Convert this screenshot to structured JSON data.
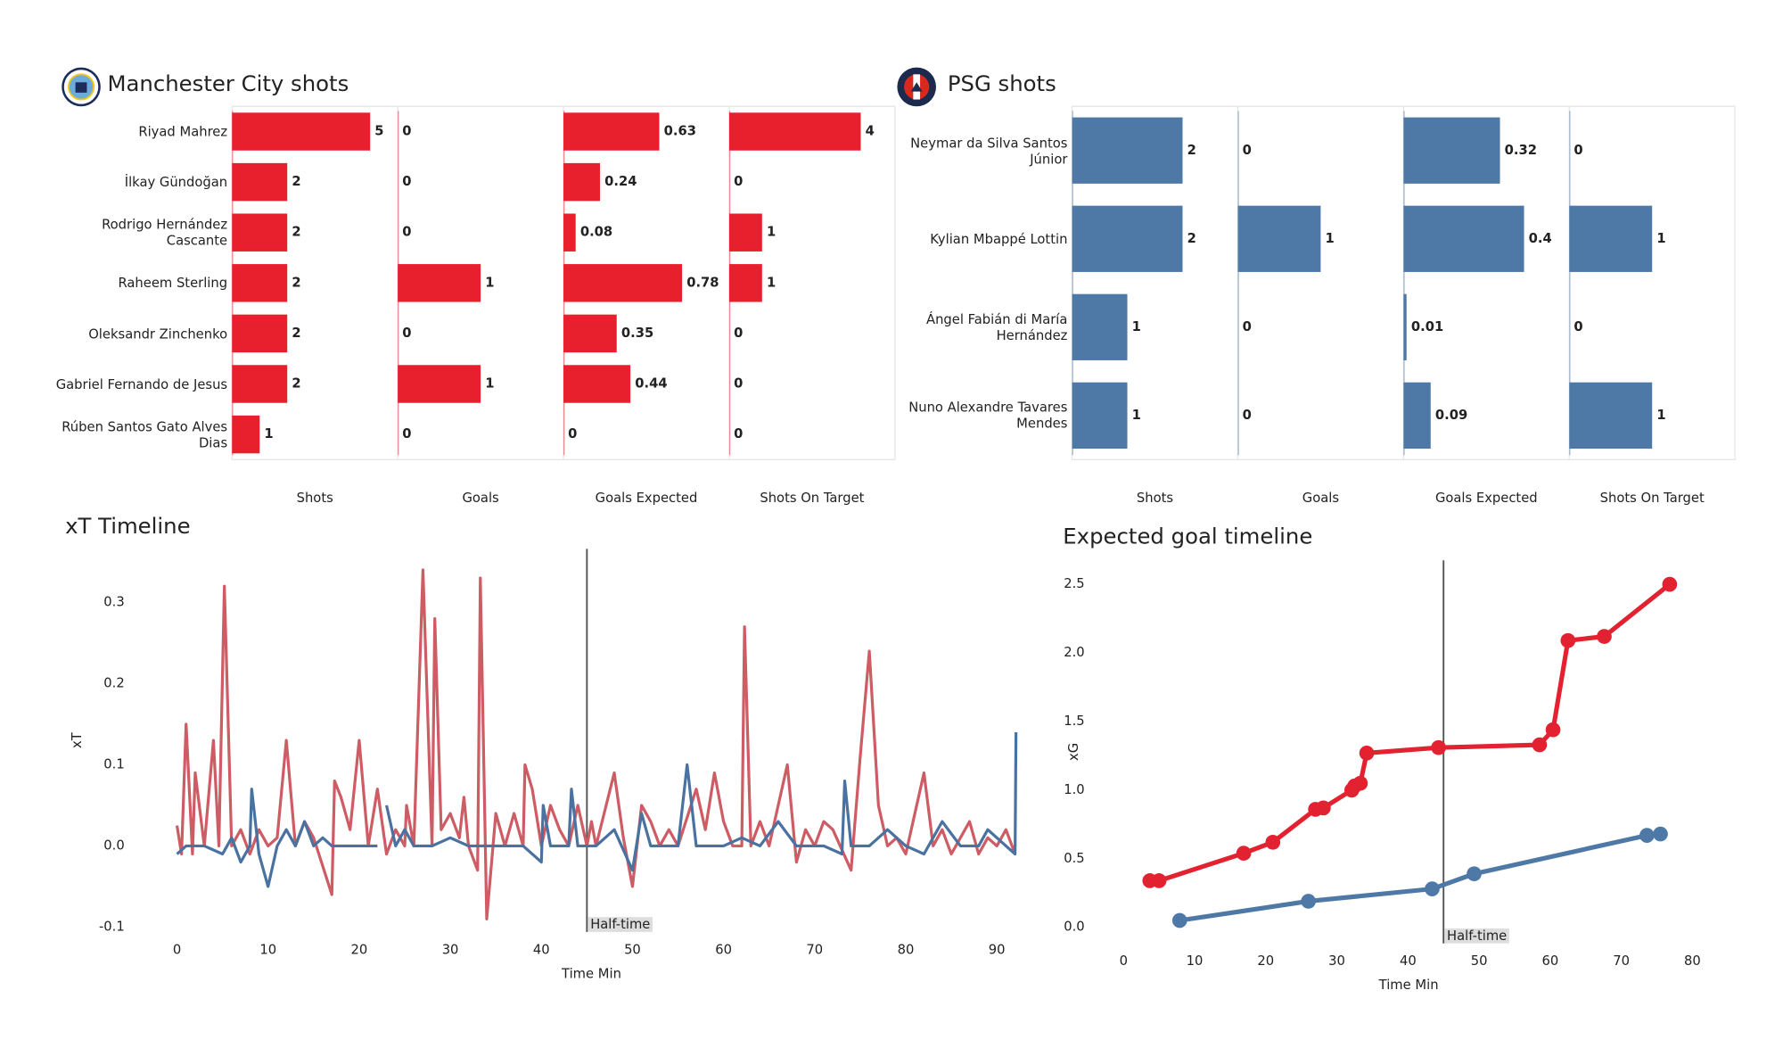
{
  "chart_data": [
    {
      "type": "bar",
      "title": "Manchester City shots",
      "categories": [
        "Riyad Mahrez",
        "İlkay Gündoğan",
        "Rodrigo Hernández Cascante",
        "Raheem Sterling",
        "Oleksandr Zinchenko",
        "Gabriel Fernando de Jesus",
        "Rúben  Santos Gato Alves Dias"
      ],
      "series": [
        {
          "name": "Shots",
          "color": "#e8202e",
          "values": [
            5,
            2,
            2,
            2,
            2,
            2,
            1
          ],
          "xlim": [
            0,
            6
          ]
        },
        {
          "name": "Goals",
          "color": "#e8202e",
          "values": [
            0,
            0,
            0,
            1,
            0,
            1,
            0
          ],
          "xlim": [
            0,
            2
          ]
        },
        {
          "name": "Goals Expected",
          "color": "#e8202e",
          "values": [
            0.63,
            0.24,
            0.08,
            0.78,
            0.35,
            0.44,
            0
          ],
          "xlim": [
            0,
            1.09
          ]
        },
        {
          "name": "Shots On Target",
          "color": "#e8202e",
          "values": [
            4,
            0,
            1,
            1,
            0,
            0,
            0
          ],
          "xlim": [
            0,
            5.04
          ]
        }
      ]
    },
    {
      "type": "bar",
      "title": "PSG shots",
      "categories": [
        "Neymar da Silva Santos Júnior",
        "Kylian Mbappé Lottin",
        "Ángel Fabián di María Hernández",
        "Nuno Alexandre Tavares Mendes"
      ],
      "series": [
        {
          "name": "Shots",
          "color": "#4e79a7",
          "values": [
            2,
            2,
            1,
            1
          ],
          "xlim": [
            0,
            3
          ]
        },
        {
          "name": "Goals",
          "color": "#4e79a7",
          "values": [
            0,
            1,
            0,
            0
          ],
          "xlim": [
            0,
            2
          ]
        },
        {
          "name": "Goals Expected",
          "color": "#4e79a7",
          "values": [
            0.32,
            0.4,
            0.01,
            0.09
          ],
          "xlim": [
            0,
            0.55
          ]
        },
        {
          "name": "Shots On Target",
          "color": "#4e79a7",
          "values": [
            0,
            1,
            0,
            1
          ],
          "xlim": [
            0,
            2
          ]
        }
      ]
    },
    {
      "type": "line",
      "title": "xT Timeline",
      "xlabel": "Time Min",
      "ylabel": "xT",
      "xlim": [
        -5,
        96
      ],
      "ylim": [
        -0.106,
        0.366
      ],
      "xticks": [
        0,
        10,
        20,
        30,
        40,
        50,
        60,
        70,
        80,
        90
      ],
      "yticks": [
        -0.1,
        {
          "value": 0,
          "label": "0.0"
        },
        0.1,
        0.2,
        0.3
      ],
      "annotation": {
        "value": 45,
        "label": "Half-time"
      },
      "series": [
        {
          "color": "#cd5c64",
          "x": [
            0,
            0.5,
            1,
            1.7,
            2,
            3,
            4,
            4.6,
            5.2,
            6,
            7,
            8,
            9,
            10,
            11,
            12,
            13,
            14,
            15,
            17,
            17.3,
            18,
            19,
            20,
            21,
            22,
            23,
            24,
            25,
            25.2,
            26,
            27,
            28,
            28.3,
            29,
            30,
            31,
            31.5,
            32,
            33,
            33.3,
            34,
            35,
            36,
            37,
            38,
            38.2,
            39,
            40,
            41,
            42,
            43,
            44,
            45,
            45.5,
            46,
            48,
            49,
            50,
            51,
            52,
            53,
            54,
            55,
            57,
            58,
            59,
            60,
            61,
            62,
            62.3,
            63,
            64,
            65,
            67,
            68,
            69,
            70,
            71,
            72,
            74,
            75,
            76,
            77,
            78,
            79,
            80,
            81,
            82,
            83,
            84,
            85,
            86,
            87,
            88,
            89,
            90,
            91,
            92
          ],
          "values": [
            0.025,
            -0.01,
            0.15,
            -0.01,
            0.09,
            0,
            0.13,
            0,
            0.32,
            0,
            0.02,
            -0.01,
            0.02,
            0,
            0.01,
            0.13,
            0,
            0.03,
            0.01,
            -0.06,
            0.08,
            0.06,
            0.02,
            0.13,
            0,
            0.07,
            -0.01,
            0.02,
            0,
            0.05,
            0,
            0.34,
            0,
            0.28,
            0.02,
            0.04,
            0.01,
            0.06,
            0,
            -0.03,
            0.33,
            -0.09,
            0.04,
            0,
            0.04,
            0,
            0.1,
            0.07,
            0,
            0.05,
            0.02,
            0,
            0.05,
            0,
            0.03,
            0,
            0.09,
            0.01,
            -0.05,
            0.05,
            0.03,
            0,
            0.02,
            0,
            0.07,
            0.02,
            0.09,
            0.03,
            0,
            0,
            0.27,
            0,
            0.03,
            0,
            0.1,
            -0.02,
            0.02,
            0,
            0.03,
            0.02,
            -0.03,
            0.11,
            0.24,
            0.05,
            0,
            0.01,
            -0.01,
            0.04,
            0.09,
            0,
            0.02,
            -0.01,
            0.01,
            0.03,
            -0.01,
            0.01,
            0,
            0.02,
            -0.01
          ]
        },
        {
          "color": "#4a72a0",
          "x": [
            0,
            1,
            3,
            5,
            6,
            7,
            8,
            8.2,
            9,
            10,
            11,
            12,
            13,
            14,
            15,
            16,
            17,
            20,
            22,
            22.5,
            23,
            24,
            25,
            26,
            28,
            30,
            32,
            35,
            38,
            40,
            40.2,
            41,
            43,
            43.3,
            44,
            46,
            48,
            50,
            51,
            52,
            55,
            56,
            57,
            60,
            62,
            64,
            66,
            68,
            71,
            73,
            73.3,
            74,
            76,
            78,
            80,
            82,
            84,
            86,
            88,
            89,
            92,
            92.1
          ],
          "values": [
            -0.01,
            0,
            0,
            -0.01,
            0.01,
            -0.02,
            0,
            0.07,
            -0.01,
            -0.05,
            0,
            0.02,
            0,
            0.03,
            0,
            0.01,
            0,
            0,
            0,
            null,
            0.05,
            0,
            0.02,
            0,
            0,
            0.01,
            0,
            0,
            0,
            -0.02,
            0.05,
            0,
            0,
            0.07,
            0,
            0,
            0.02,
            -0.03,
            0.04,
            0,
            0,
            0.1,
            0,
            0,
            0.01,
            0,
            0.03,
            0,
            0,
            -0.01,
            0.08,
            0,
            0,
            0.02,
            0,
            -0.01,
            0.03,
            0,
            0,
            0.02,
            -0.01,
            0.14
          ]
        }
      ]
    },
    {
      "type": "line",
      "title": "Expected goal timeline",
      "xlabel": "Time Min",
      "ylabel": "xG",
      "xlim": [
        -4.5,
        84.7
      ],
      "ylim": [
        -0.117,
        2.675
      ],
      "markers": true,
      "xticks": [
        0,
        10,
        20,
        30,
        40,
        50,
        60,
        70,
        80
      ],
      "yticks": [
        {
          "value": 0,
          "label": "0.0"
        },
        0.5,
        {
          "value": 1,
          "label": "1.0"
        },
        1.5,
        {
          "value": 2,
          "label": "2.0"
        },
        2.5
      ],
      "annotation": {
        "value": 45,
        "label": "Half-time"
      },
      "series": [
        {
          "color": "#e32231",
          "x": [
            3.7,
            5,
            16.9,
            21,
            27,
            28.1,
            32.1,
            32.5,
            33.3,
            34.2,
            44.3,
            58.5,
            60.4,
            62.5,
            67.6,
            76.8
          ],
          "values": [
            0.34,
            0.34,
            0.54,
            0.62,
            0.86,
            0.87,
            1.0,
            1.03,
            1.05,
            1.27,
            1.31,
            1.33,
            1.44,
            2.09,
            2.12,
            2.5
          ]
        },
        {
          "color": "#4e79a7",
          "x": [
            7.9,
            26,
            43.4,
            49.3,
            73.6,
            75.5
          ],
          "values": [
            0.05,
            0.19,
            0.28,
            0.39,
            0.67,
            0.68
          ]
        }
      ]
    }
  ]
}
